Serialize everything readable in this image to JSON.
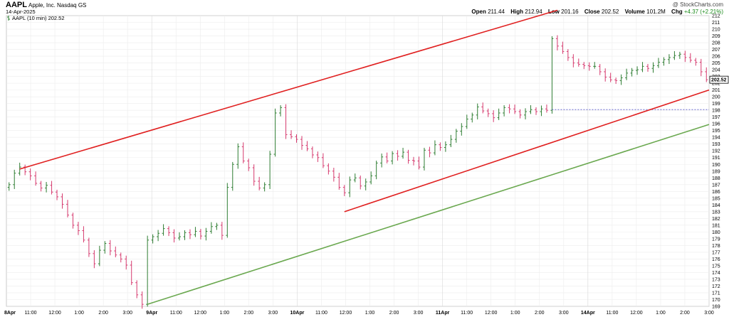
{
  "header": {
    "ticker": "AAPL",
    "company": "Apple, Inc.  Nasdaq GS",
    "date": "14-Apr-2025",
    "credit": "@ StockCharts.com",
    "open_label": "Open",
    "open": "211.44",
    "high_label": "High",
    "high": "212.94",
    "low_label": "Low",
    "low": "201.16",
    "close_label": "Close",
    "close": "202.52",
    "volume_label": "Volume",
    "volume": "101.2M",
    "chg_label": "Chg",
    "chg": "+4.37 (+2.21%)"
  },
  "chart_data": {
    "type": "ohlc",
    "legend": "AAPL (10 min) 202.52",
    "last_price_label": "202.52",
    "ylim": [
      169,
      212
    ],
    "yticks": [
      169,
      170,
      171,
      172,
      173,
      174,
      175,
      176,
      177,
      178,
      179,
      180,
      181,
      182,
      183,
      184,
      185,
      186,
      187,
      188,
      189,
      190,
      191,
      192,
      193,
      194,
      195,
      196,
      197,
      198,
      199,
      200,
      201,
      202,
      203,
      204,
      205,
      206,
      207,
      208,
      209,
      210,
      211,
      212
    ],
    "xticks": [
      {
        "label": "8Apr",
        "bold": true
      },
      {
        "label": "11:00"
      },
      {
        "label": "12:00"
      },
      {
        "label": "1:00"
      },
      {
        "label": "2:00"
      },
      {
        "label": "3:00"
      },
      {
        "label": "9Apr",
        "bold": true
      },
      {
        "label": "11:00"
      },
      {
        "label": "12:00"
      },
      {
        "label": "1:00"
      },
      {
        "label": "2:00"
      },
      {
        "label": "3:00"
      },
      {
        "label": "10Apr",
        "bold": true
      },
      {
        "label": "11:00"
      },
      {
        "label": "12:00"
      },
      {
        "label": "1:00"
      },
      {
        "label": "2:00"
      },
      {
        "label": "3:00"
      },
      {
        "label": "11Apr",
        "bold": true
      },
      {
        "label": "11:00"
      },
      {
        "label": "12:00"
      },
      {
        "label": "1:00"
      },
      {
        "label": "2:00"
      },
      {
        "label": "3:00"
      },
      {
        "label": "14Apr",
        "bold": true
      },
      {
        "label": "11:00"
      },
      {
        "label": "12:00"
      },
      {
        "label": "1:00"
      },
      {
        "label": "2:00"
      },
      {
        "label": "3:00"
      }
    ],
    "closes": [
      187.0,
      188.7,
      189.6,
      188.9,
      188.3,
      187.2,
      186.5,
      186.9,
      185.9,
      185.2,
      184.1,
      182.5,
      181.0,
      180.2,
      178.8,
      176.8,
      175.3,
      177.3,
      178.3,
      177.2,
      176.6,
      176.0,
      175.1,
      172.5,
      170.7,
      169.3,
      178.8,
      179.3,
      179.8,
      180.5,
      179.9,
      179.1,
      179.3,
      179.9,
      179.6,
      180.1,
      179.4,
      180.1,
      180.8,
      181.0,
      179.5,
      186.6,
      190.0,
      192.6,
      190.5,
      189.5,
      187.5,
      186.5,
      187.0,
      191.5,
      197.6,
      198.4,
      194.4,
      194.1,
      193.7,
      192.8,
      192.3,
      191.4,
      191.0,
      189.8,
      189.0,
      188.1,
      186.6,
      185.8,
      187.7,
      188.0,
      186.8,
      187.4,
      188.3,
      190.2,
      191.1,
      190.5,
      191.6,
      191.2,
      191.8,
      190.6,
      190.5,
      189.6,
      192.1,
      191.7,
      192.9,
      192.5,
      192.9,
      193.7,
      194.9,
      195.6,
      196.7,
      197.3,
      198.5,
      197.9,
      197.5,
      196.9,
      197.6,
      198.4,
      198.2,
      197.8,
      197.3,
      197.8,
      198.1,
      197.8,
      198.2,
      198.0,
      208.6,
      207.5,
      206.7,
      205.8,
      205.0,
      204.8,
      204.6,
      204.5,
      204.5,
      203.7,
      202.9,
      202.5,
      202.4,
      202.8,
      203.5,
      203.9,
      204.0,
      204.5,
      204.2,
      204.6,
      205.1,
      205.5,
      205.8,
      206.1,
      206.3,
      205.8,
      205.4,
      205.1,
      203.7,
      202.52
    ],
    "hlines": [
      {
        "name": "close-level",
        "y": 198.1,
        "from_bar": 102,
        "to_bar": 134,
        "color": "#5050c8",
        "style": "dashed"
      }
    ],
    "trendlines": [
      {
        "name": "upper-channel",
        "color": "#e02020",
        "from": [
          2,
          189.3
        ],
        "to": [
          103,
          212.8
        ]
      },
      {
        "name": "lower-red-channel",
        "color": "#e02020",
        "from": [
          63,
          183.0
        ],
        "to": [
          134,
          201.0
        ]
      },
      {
        "name": "green-support",
        "color": "#6aa84f",
        "from": [
          26,
          169.3
        ],
        "to": [
          134,
          195.9
        ]
      }
    ]
  }
}
